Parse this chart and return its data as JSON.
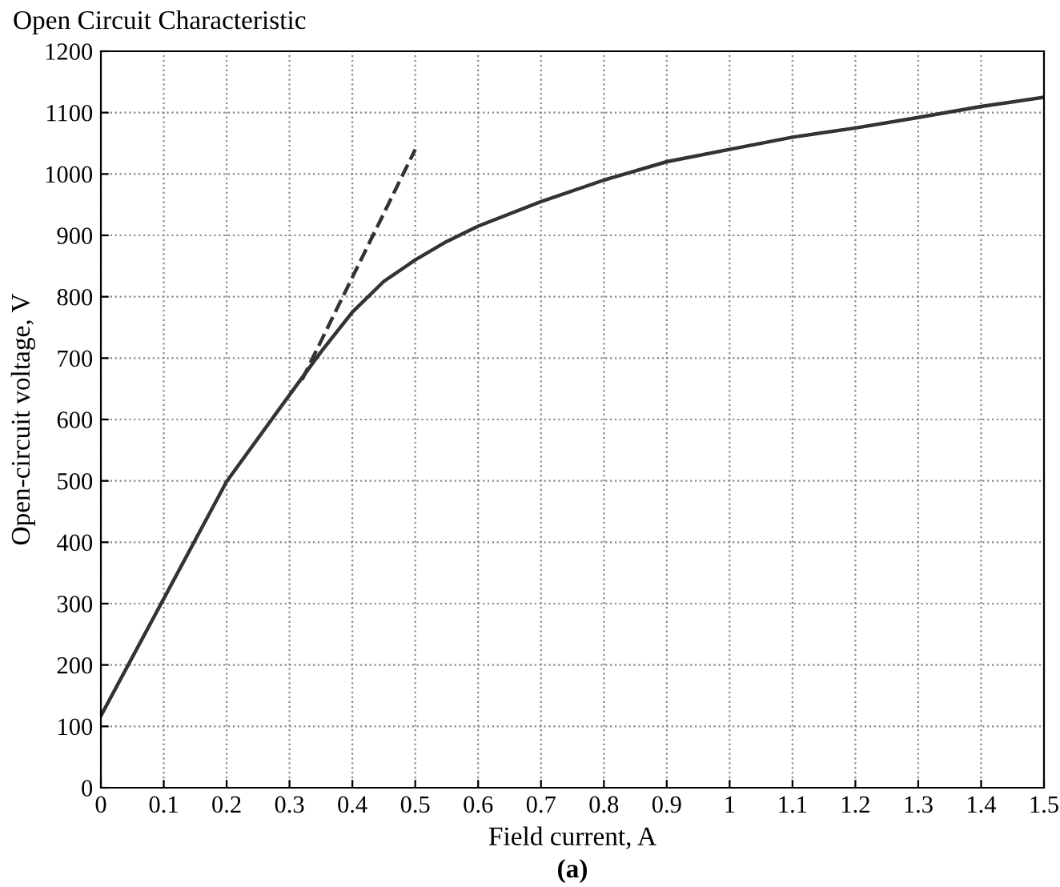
{
  "chart_data": {
    "type": "line",
    "title": "Open Circuit Characteristic",
    "xlabel": "Field current, A",
    "ylabel": "Open-circuit voltage, V",
    "annotations": [
      "(a)"
    ],
    "series": [
      {
        "color": "#333333",
        "line_style": "solid",
        "x": [
          0,
          0.1,
          0.2,
          0.3,
          0.35,
          0.4,
          0.45,
          0.5,
          0.55,
          0.6,
          0.7,
          0.8,
          0.9,
          1.0,
          1.1,
          1.2,
          1.3,
          1.4,
          1.5
        ],
        "values": [
          117,
          308,
          499,
          640,
          710,
          775,
          825,
          860,
          890,
          915,
          955,
          990,
          1020,
          1040,
          1060,
          1075,
          1092,
          1110,
          1125
        ]
      },
      {
        "color": "#333333",
        "line_style": "dashed",
        "x": [
          0.32,
          0.5
        ],
        "values": [
          665,
          1040
        ]
      }
    ],
    "xlim": [
      0,
      1.5
    ],
    "xticks": [
      0,
      0.1,
      0.2,
      0.3,
      0.4,
      0.5,
      0.6,
      0.7,
      0.8,
      0.9,
      1,
      1.1,
      1.2,
      1.3,
      1.4,
      1.5
    ],
    "ylim": [
      0,
      1200
    ],
    "yticks": [
      0,
      100,
      200,
      300,
      400,
      500,
      600,
      700,
      800,
      900,
      1000,
      1100,
      1200
    ],
    "grid": true,
    "marker": "none"
  }
}
